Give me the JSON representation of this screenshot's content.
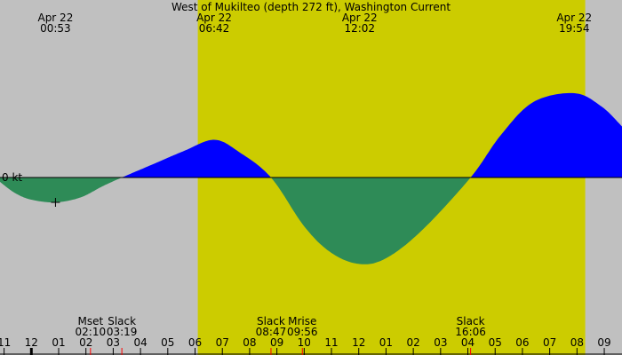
{
  "chart_data": {
    "type": "area",
    "title": "West of Mukilteo (depth 272 ft), Washington Current",
    "unit_label": "0 kt",
    "colors": {
      "night": "#c0c0c0",
      "day": "#cccc00",
      "flood": "#0000ff",
      "ebb": "#2e8b57",
      "axis": "#000000",
      "event_tick": "#ff0000"
    },
    "top_labels": [
      {
        "date": "Apr 22",
        "time": "00:53",
        "hour": 0.883
      },
      {
        "date": "Apr 22",
        "time": "06:42",
        "hour": 6.7
      },
      {
        "date": "Apr 22",
        "time": "12:02",
        "hour": 12.033
      },
      {
        "date": "Apr 22",
        "time": "19:54",
        "hour": 19.9
      }
    ],
    "daylight": {
      "sunrise_hour": 6.1,
      "sunset_hour": 20.3
    },
    "x_range_hours": [
      -1.15,
      21.65
    ],
    "y_range_kt": [
      -2.0,
      2.0
    ],
    "current_curve_kt": [
      {
        "hour": -1.15,
        "kt": -0.1
      },
      {
        "hour": -0.6,
        "kt": -0.35
      },
      {
        "hour": 0.0,
        "kt": -0.5
      },
      {
        "hour": 0.883,
        "kt": -0.56
      },
      {
        "hour": 1.8,
        "kt": -0.45
      },
      {
        "hour": 2.6,
        "kt": -0.2
      },
      {
        "hour": 3.317,
        "kt": 0.0
      },
      {
        "hour": 4.5,
        "kt": 0.31
      },
      {
        "hour": 5.6,
        "kt": 0.6
      },
      {
        "hour": 6.7,
        "kt": 0.85
      },
      {
        "hour": 7.6,
        "kt": 0.58
      },
      {
        "hour": 8.783,
        "kt": 0.0
      },
      {
        "hour": 10.0,
        "kt": -1.1
      },
      {
        "hour": 11.0,
        "kt": -1.7
      },
      {
        "hour": 12.033,
        "kt": -1.95
      },
      {
        "hour": 13.0,
        "kt": -1.82
      },
      {
        "hour": 14.3,
        "kt": -1.2
      },
      {
        "hour": 16.1,
        "kt": 0.0
      },
      {
        "hour": 17.2,
        "kt": 0.95
      },
      {
        "hour": 18.4,
        "kt": 1.7
      },
      {
        "hour": 19.9,
        "kt": 1.9
      },
      {
        "hour": 20.9,
        "kt": 1.6
      },
      {
        "hour": 21.65,
        "kt": 1.15
      }
    ],
    "marker": {
      "symbol": "+",
      "hour": 0.883,
      "kt": -0.56
    },
    "x_ticks": [
      {
        "label": "11",
        "hour": -1
      },
      {
        "label": "12",
        "hour": 0
      },
      {
        "label": "01",
        "hour": 1
      },
      {
        "label": "02",
        "hour": 2
      },
      {
        "label": "03",
        "hour": 3
      },
      {
        "label": "04",
        "hour": 4
      },
      {
        "label": "05",
        "hour": 5
      },
      {
        "label": "06",
        "hour": 6
      },
      {
        "label": "07",
        "hour": 7
      },
      {
        "label": "08",
        "hour": 8
      },
      {
        "label": "09",
        "hour": 9
      },
      {
        "label": "10",
        "hour": 10
      },
      {
        "label": "11",
        "hour": 11
      },
      {
        "label": "12",
        "hour": 12
      },
      {
        "label": "01",
        "hour": 13
      },
      {
        "label": "02",
        "hour": 14
      },
      {
        "label": "03",
        "hour": 15
      },
      {
        "label": "04",
        "hour": 16
      },
      {
        "label": "05",
        "hour": 17
      },
      {
        "label": "06",
        "hour": 18
      },
      {
        "label": "07",
        "hour": 19
      },
      {
        "label": "08",
        "hour": 20
      },
      {
        "label": "09",
        "hour": 21
      }
    ],
    "events": [
      {
        "name": "Mset",
        "time": "02:10",
        "hour": 2.167
      },
      {
        "name": "Slack",
        "time": "03:19",
        "hour": 3.317
      },
      {
        "name": "Slack",
        "time": "08:47",
        "hour": 8.783
      },
      {
        "name": "Mrise",
        "time": "09:56",
        "hour": 9.933
      },
      {
        "name": "Slack",
        "time": "16:06",
        "hour": 16.1
      }
    ]
  }
}
